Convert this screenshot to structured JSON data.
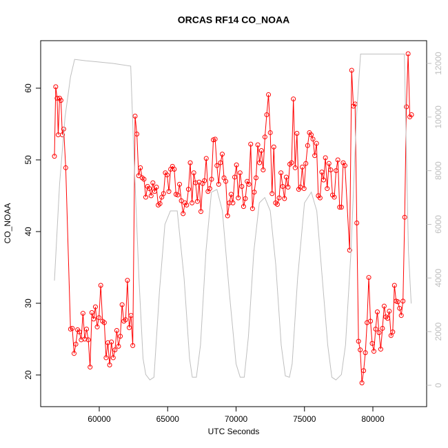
{
  "chart_data": {
    "type": "line",
    "title": "ORCAS RF14 CO_NOAA",
    "x_label": "UTC Seconds",
    "y_label": "CO_NOAA",
    "xlim": [
      55718,
      83929
    ],
    "ylim": [
      15.58,
      66.63
    ],
    "y2lim": [
      -797,
      12848
    ],
    "xticks": [
      60000,
      65000,
      70000,
      75000,
      80000
    ],
    "yticks": [
      20,
      30,
      40,
      50,
      60
    ],
    "y2ticks": [
      0,
      2000,
      4000,
      6000,
      8000,
      10000,
      12000
    ],
    "y2_color": "#bebebe",
    "grid": false,
    "series": [
      {
        "color": "#ff0000",
        "marker": "circle",
        "x": [
          56725,
          56820,
          56920,
          57000,
          57100,
          57200,
          57300,
          57400,
          57550,
          57900,
          58030,
          58160,
          58290,
          58420,
          58550,
          58680,
          58810,
          58940,
          59070,
          59200,
          59330,
          59460,
          59590,
          59720,
          59850,
          59980,
          60110,
          60240,
          60370,
          60500,
          60630,
          60760,
          60890,
          61020,
          61150,
          61280,
          61410,
          61540,
          61670,
          61800,
          61930,
          62060,
          62190,
          62320,
          62450,
          62620,
          62750,
          62880,
          63010,
          63140,
          63270,
          63400,
          63530,
          63660,
          63790,
          63920,
          64050,
          64180,
          64310,
          64440,
          64570,
          64700,
          64830,
          64960,
          65090,
          65220,
          65350,
          65480,
          65610,
          65740,
          65870,
          66000,
          66130,
          66260,
          66390,
          66520,
          66650,
          66780,
          66910,
          67040,
          67170,
          67300,
          67430,
          67560,
          67690,
          67820,
          67950,
          68080,
          68210,
          68340,
          68470,
          68600,
          68730,
          68860,
          68990,
          69120,
          69250,
          69380,
          69510,
          69640,
          69770,
          69900,
          70030,
          70160,
          70290,
          70420,
          70550,
          70680,
          70810,
          70940,
          71070,
          71200,
          71330,
          71460,
          71590,
          71720,
          71850,
          71980,
          72110,
          72240,
          72370,
          72500,
          72630,
          72760,
          72890,
          73020,
          73150,
          73280,
          73410,
          73540,
          73670,
          73800,
          73930,
          74060,
          74190,
          74320,
          74450,
          74580,
          74710,
          74840,
          74970,
          75100,
          75230,
          75360,
          75490,
          75620,
          75750,
          75880,
          76010,
          76140,
          76270,
          76400,
          76530,
          76660,
          76790,
          76920,
          77050,
          77180,
          77310,
          77440,
          77570,
          77700,
          77830,
          77960,
          78300,
          78450,
          78575,
          78700,
          78825,
          78950,
          79075,
          79200,
          79325,
          79450,
          79575,
          79700,
          79825,
          79950,
          80075,
          80200,
          80325,
          80450,
          80575,
          80700,
          80825,
          80950,
          81075,
          81200,
          81325,
          81450,
          81575,
          81700,
          81825,
          81950,
          82075,
          82200,
          82325,
          82450,
          82575,
          82700,
          82825
        ],
        "values": [
          50.5,
          60.2,
          58.6,
          53.5,
          58.6,
          58.3,
          53.5,
          54.3,
          48.9,
          26.4,
          26.5,
          23.0,
          24.3,
          26.3,
          26.0,
          24.9,
          28.6,
          25.0,
          26.4,
          24.9,
          21.1,
          28.7,
          27.8,
          29.5,
          26.7,
          28.0,
          32.5,
          27.5,
          27.3,
          22.4,
          24.5,
          21.4,
          24.6,
          22.4,
          23.5,
          26.2,
          24.0,
          25.4,
          29.8,
          27.5,
          27.7,
          33.2,
          26.6,
          28.3,
          24.1,
          56.1,
          53.6,
          47.8,
          48.9,
          47.5,
          47.3,
          44.8,
          46.3,
          46.0,
          45.0,
          46.8,
          45.6,
          46.2,
          43.7,
          43.9,
          44.8,
          45.3,
          48.2,
          47.9,
          45.6,
          48.7,
          49.1,
          48.7,
          45.2,
          45.1,
          46.6,
          44.3,
          42.5,
          44.0,
          43.7,
          45.9,
          49.6,
          44.0,
          48.2,
          46.8,
          44.2,
          46.9,
          42.8,
          46.7,
          47.1,
          50.2,
          45.6,
          46.0,
          47.3,
          52.8,
          52.9,
          49.2,
          46.6,
          49.6,
          50.8,
          47.5,
          47.0,
          42.2,
          44.0,
          45.2,
          44.0,
          47.6,
          49.3,
          44.7,
          48.2,
          46.3,
          43.5,
          44.6,
          47.0,
          46.6,
          52.2,
          43.2,
          45.5,
          47.5,
          52.1,
          49.6,
          51.3,
          48.6,
          53.2,
          56.3,
          59.1,
          53.8,
          45.3,
          51.8,
          44.0,
          43.8,
          44.7,
          48.2,
          46.3,
          44.6,
          47.6,
          46.2,
          49.4,
          49.6,
          58.5,
          48.9,
          53.7,
          45.9,
          46.2,
          49.0,
          46.0,
          49.5,
          52.0,
          53.8,
          53.5,
          52.9,
          50.6,
          52.3,
          45.0,
          44.7,
          48.3,
          47.2,
          50.3,
          46.0,
          49.5,
          48.6,
          45.1,
          44.8,
          48.5,
          50.0,
          43.4,
          43.4,
          49.6,
          49.2,
          37.4,
          62.5,
          57.5,
          57.8,
          41.2,
          24.7,
          23.5,
          18.9,
          20.6,
          23.1,
          27.3,
          33.6,
          27.5,
          24.4,
          23.3,
          26.4,
          28.8,
          25.9,
          23.6,
          26.5,
          29.6,
          28.1,
          27.9,
          28.9,
          25.5,
          26.0,
          32.5,
          30.3,
          30.2,
          29.3,
          28.3,
          30.3,
          42.0,
          57.4,
          64.8,
          56.0,
          56.3
        ]
      },
      {
        "color": "#bebebe",
        "axis": "y2",
        "x": [
          56725,
          57100,
          57500,
          57900,
          58200,
          59000,
          60000,
          61000,
          62300,
          62500,
          62900,
          63200,
          63400,
          63700,
          64000,
          64400,
          64800,
          65200,
          65700,
          66200,
          66600,
          66800,
          67100,
          67400,
          67800,
          68200,
          68600,
          69000,
          69500,
          70000,
          70300,
          70600,
          70900,
          71300,
          71700,
          72100,
          72500,
          72900,
          73300,
          73600,
          73900,
          74100,
          74500,
          75000,
          75500,
          75900,
          76300,
          76700,
          77000,
          77300,
          77700,
          78000,
          78400,
          78800,
          79100,
          82300,
          82600,
          82800
        ],
        "values": [
          3900,
          7500,
          10000,
          11500,
          12150,
          12100,
          12050,
          12000,
          11900,
          9000,
          4000,
          1000,
          400,
          200,
          300,
          3500,
          6000,
          6500,
          6500,
          4000,
          1000,
          300,
          300,
          1500,
          5000,
          7200,
          7300,
          6500,
          3500,
          800,
          300,
          300,
          1800,
          5000,
          6800,
          7000,
          6500,
          4500,
          1500,
          350,
          300,
          800,
          4000,
          6800,
          7200,
          6500,
          4000,
          1500,
          300,
          200,
          400,
          1500,
          5000,
          10000,
          12350,
          12350,
          5000,
          3050
        ]
      }
    ]
  }
}
